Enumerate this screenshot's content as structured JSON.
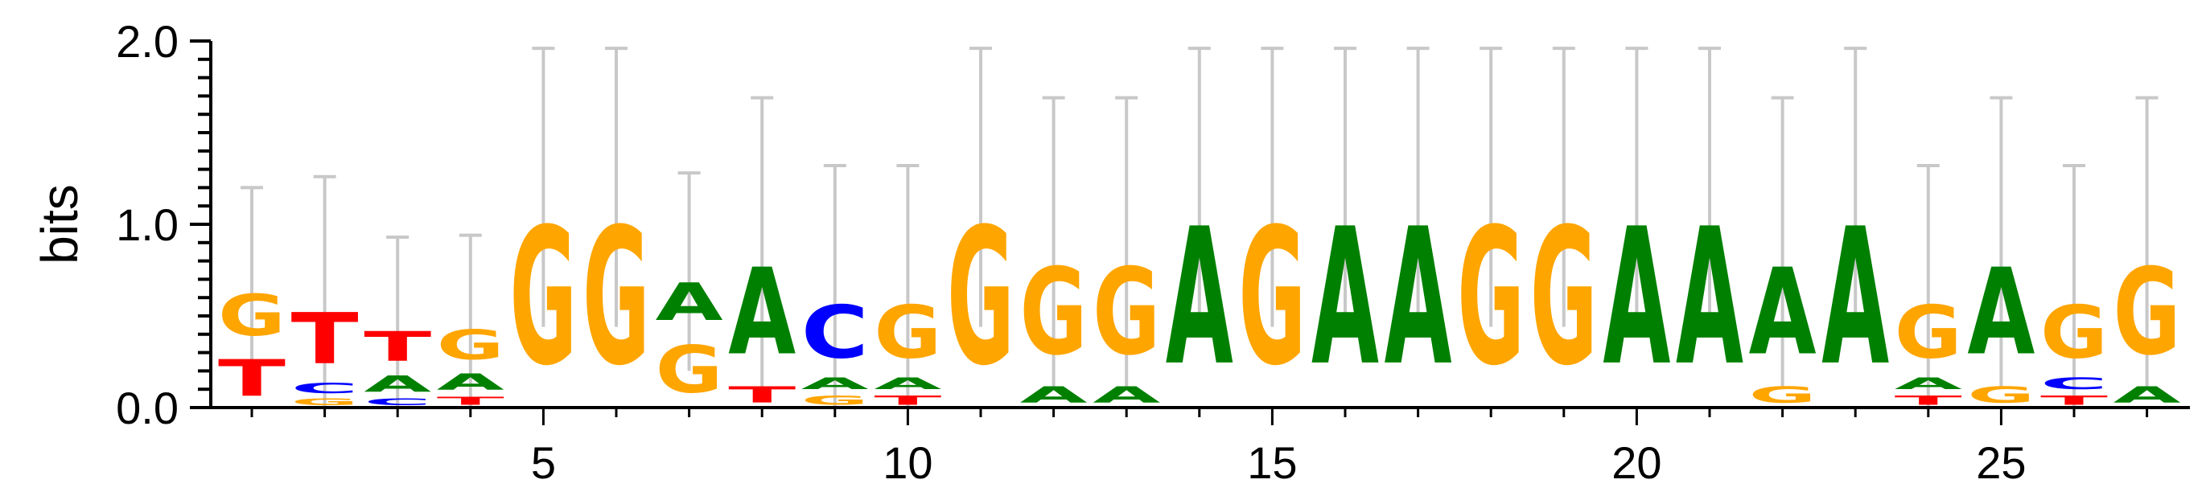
{
  "chart_data": {
    "type": "sequence-logo",
    "ylabel": "bits",
    "ylim": [
      0,
      2.0
    ],
    "y_ticks": [
      "0.0",
      "1.0",
      "2.0"
    ],
    "x_tick_labels": [
      "5",
      "10",
      "15",
      "20",
      "25"
    ],
    "x_tick_positions": [
      5,
      10,
      15,
      20,
      25
    ],
    "colors": {
      "A": "#008000",
      "C": "#0000ff",
      "G": "#ffa500",
      "T": "#ff0000"
    },
    "positions": [
      {
        "pos": 1,
        "error": 0.52,
        "letters": [
          [
            "T",
            0.32
          ],
          [
            "G",
            0.36
          ]
        ]
      },
      {
        "pos": 2,
        "error": 0.66,
        "letters": [
          [
            "G",
            0.06
          ],
          [
            "C",
            0.09
          ],
          [
            "T",
            0.45
          ]
        ]
      },
      {
        "pos": 3,
        "error": 0.47,
        "letters": [
          [
            "C",
            0.06
          ],
          [
            "A",
            0.14
          ],
          [
            "T",
            0.26
          ]
        ]
      },
      {
        "pos": 4,
        "error": 0.47,
        "letters": [
          [
            "T",
            0.07
          ],
          [
            "A",
            0.14
          ],
          [
            "G",
            0.26
          ]
        ]
      },
      {
        "pos": 5,
        "error": 0.76,
        "letters": [
          [
            "G",
            1.2
          ]
        ]
      },
      {
        "pos": 6,
        "error": 0.76,
        "letters": [
          [
            "G",
            1.2
          ]
        ]
      },
      {
        "pos": 7,
        "error": 0.54,
        "letters": [
          [
            "G",
            0.41
          ],
          [
            "A",
            0.33
          ]
        ]
      },
      {
        "pos": 8,
        "error": 0.79,
        "letters": [
          [
            "T",
            0.14
          ],
          [
            "A",
            0.76
          ]
        ]
      },
      {
        "pos": 9,
        "error": 0.68,
        "letters": [
          [
            "G",
            0.08
          ],
          [
            "A",
            0.1
          ],
          [
            "C",
            0.46
          ]
        ]
      },
      {
        "pos": 10,
        "error": 0.68,
        "letters": [
          [
            "T",
            0.08
          ],
          [
            "A",
            0.1
          ],
          [
            "G",
            0.46
          ]
        ]
      },
      {
        "pos": 11,
        "error": 0.76,
        "letters": [
          [
            "G",
            1.2
          ]
        ]
      },
      {
        "pos": 12,
        "error": 0.79,
        "letters": [
          [
            "A",
            0.14
          ],
          [
            "G",
            0.76
          ]
        ]
      },
      {
        "pos": 13,
        "error": 0.79,
        "letters": [
          [
            "A",
            0.14
          ],
          [
            "G",
            0.76
          ]
        ]
      },
      {
        "pos": 14,
        "error": 0.76,
        "letters": [
          [
            "A",
            1.2
          ]
        ]
      },
      {
        "pos": 15,
        "error": 0.76,
        "letters": [
          [
            "G",
            1.2
          ]
        ]
      },
      {
        "pos": 16,
        "error": 0.76,
        "letters": [
          [
            "A",
            1.2
          ]
        ]
      },
      {
        "pos": 17,
        "error": 0.76,
        "letters": [
          [
            "A",
            1.2
          ]
        ]
      },
      {
        "pos": 18,
        "error": 0.76,
        "letters": [
          [
            "G",
            1.2
          ]
        ]
      },
      {
        "pos": 19,
        "error": 0.76,
        "letters": [
          [
            "G",
            1.2
          ]
        ]
      },
      {
        "pos": 20,
        "error": 0.76,
        "letters": [
          [
            "A",
            1.2
          ]
        ]
      },
      {
        "pos": 21,
        "error": 0.76,
        "letters": [
          [
            "A",
            1.2
          ]
        ]
      },
      {
        "pos": 22,
        "error": 0.79,
        "letters": [
          [
            "G",
            0.14
          ],
          [
            "A",
            0.76
          ]
        ]
      },
      {
        "pos": 23,
        "error": 0.76,
        "letters": [
          [
            "A",
            1.2
          ]
        ]
      },
      {
        "pos": 24,
        "error": 0.68,
        "letters": [
          [
            "T",
            0.08
          ],
          [
            "A",
            0.1
          ],
          [
            "G",
            0.46
          ]
        ]
      },
      {
        "pos": 25,
        "error": 0.79,
        "letters": [
          [
            "G",
            0.14
          ],
          [
            "A",
            0.76
          ]
        ]
      },
      {
        "pos": 26,
        "error": 0.68,
        "letters": [
          [
            "T",
            0.08
          ],
          [
            "C",
            0.1
          ],
          [
            "G",
            0.46
          ]
        ]
      },
      {
        "pos": 27,
        "error": 0.79,
        "letters": [
          [
            "A",
            0.14
          ],
          [
            "G",
            0.76
          ]
        ]
      }
    ]
  }
}
